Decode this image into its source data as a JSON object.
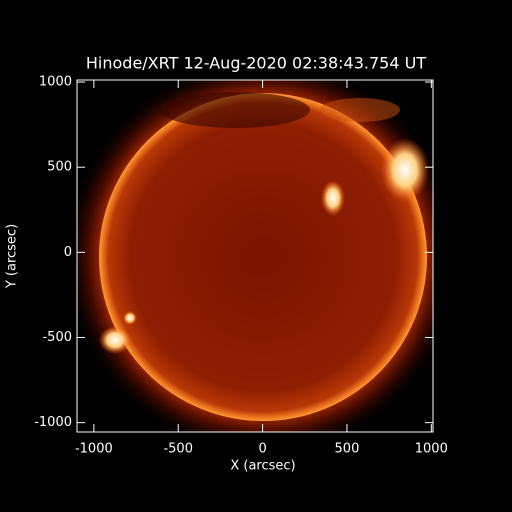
{
  "chart_data": {
    "type": "image",
    "title": "Hinode/XRT 12-Aug-2020 02:38:43.754 UT",
    "xlabel": "X (arcsec)",
    "ylabel": "Y (arcsec)",
    "xlim": [
      -1100,
      1010
    ],
    "ylim": [
      -1055,
      1012
    ],
    "xticks": [
      -1000,
      -500,
      0,
      500,
      1000
    ],
    "yticks": [
      -1000,
      -500,
      0,
      500,
      1000
    ]
  }
}
